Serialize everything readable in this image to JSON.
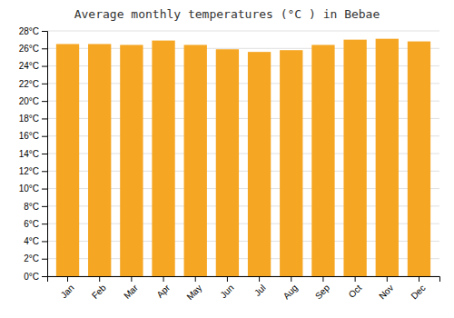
{
  "chart_data": {
    "type": "bar",
    "title": "Average monthly temperatures (°C ) in Bebae",
    "categories": [
      "Jan",
      "Feb",
      "Mar",
      "Apr",
      "May",
      "Jun",
      "Jul",
      "Aug",
      "Sep",
      "Oct",
      "Nov",
      "Dec"
    ],
    "values": [
      26.5,
      26.5,
      26.4,
      26.9,
      26.4,
      25.9,
      25.6,
      25.8,
      26.4,
      27.0,
      27.1,
      26.8
    ],
    "color": "#F5A623",
    "ylim": [
      0,
      28
    ],
    "yticks": [
      {
        "value": 0,
        "label": "0°C"
      },
      {
        "value": 2,
        "label": "2°C"
      },
      {
        "value": 4,
        "label": "4°C"
      },
      {
        "value": 6,
        "label": "6°C"
      },
      {
        "value": 8,
        "label": "8°C"
      },
      {
        "value": 10,
        "label": "10°C"
      },
      {
        "value": 12,
        "label": "12°C"
      },
      {
        "value": 14,
        "label": "14°C"
      },
      {
        "value": 16,
        "label": "16°C"
      },
      {
        "value": 18,
        "label": "18°C"
      },
      {
        "value": 20,
        "label": "20°C"
      },
      {
        "value": 22,
        "label": "22°C"
      },
      {
        "value": 24,
        "label": "24°C"
      },
      {
        "value": 26,
        "label": "26°C"
      },
      {
        "value": 28,
        "label": "28°C"
      }
    ],
    "grid": true
  }
}
